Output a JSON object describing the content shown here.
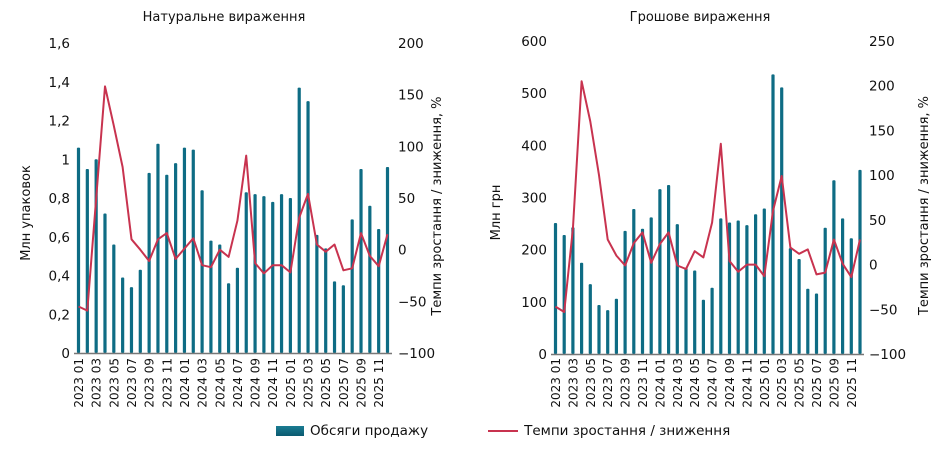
{
  "colors": {
    "bar": "#0e6c84",
    "line": "#c8334f",
    "axis": "#777777"
  },
  "legend": {
    "bars": "Обсяги продажу",
    "line": "Темпи зростання / зниження"
  },
  "chart_data": [
    {
      "type": "bar+line",
      "title": "Натуральне вираження",
      "ylabel": "Млн упаковок",
      "y2label": "Темпи зростання / зниження, %",
      "ylim": [
        0,
        1.6
      ],
      "y2lim": [
        -100,
        200
      ],
      "yticks": [
        "0",
        "0,2",
        "0,4",
        "0,6",
        "0,8",
        "1",
        "1,2",
        "1,4",
        "1,6"
      ],
      "y2ticks": [
        "−100",
        "−50",
        "0",
        "50",
        "100",
        "150",
        "200"
      ],
      "xtick_labels": [
        "2023 01",
        "2023 03",
        "2023 05",
        "2023 07",
        "2023 09",
        "2023 11",
        "2024 01",
        "2024 03",
        "2024 05",
        "2024 07",
        "2024 09",
        "2024 11",
        "2025 01",
        "2025 03",
        "2025 05",
        "2025 07",
        "2025 09",
        "2025 11"
      ],
      "series": [
        {
          "name": "Обсяги продажу",
          "type": "bar",
          "values": [
            1.06,
            0.95,
            1.0,
            0.72,
            0.56,
            0.39,
            0.34,
            0.43,
            0.93,
            1.08,
            0.92,
            0.98,
            1.06,
            1.05,
            0.84,
            0.58,
            0.56,
            0.36,
            0.44,
            0.83,
            0.82,
            0.81,
            0.78,
            0.82,
            0.8,
            1.37,
            1.3,
            0.61,
            0.54,
            0.37,
            0.35,
            0.69,
            0.95,
            0.76,
            0.64,
            0.96
          ]
        },
        {
          "name": "Темпи зростання / зниження",
          "type": "line",
          "values": [
            -55,
            -59,
            50,
            158,
            120,
            80,
            10,
            0,
            -11,
            10,
            16,
            -9,
            1,
            11,
            -15,
            -17,
            0,
            -7,
            28,
            91,
            -13,
            -23,
            -15,
            -15,
            -22,
            31,
            54,
            5,
            -2,
            5,
            -20,
            -18,
            16,
            -6,
            -16,
            15
          ]
        }
      ]
    },
    {
      "type": "bar+line",
      "title": "Грошове вираження",
      "ylabel": "Млн грн",
      "y2label": "Темпи зростання / зниження, %",
      "ylim": [
        0,
        600
      ],
      "y2lim": [
        -100,
        250
      ],
      "yticks": [
        "0",
        "100",
        "200",
        "300",
        "400",
        "500",
        "600"
      ],
      "y2ticks": [
        "−100",
        "−50",
        "0",
        "50",
        "100",
        "150",
        "200",
        "250"
      ],
      "xtick_labels": [
        "2023 01",
        "2023 03",
        "2023 05",
        "2023 07",
        "2023 09",
        "2023 11",
        "2024 01",
        "2024 03",
        "2024 05",
        "2024 07",
        "2024 09",
        "2024 11",
        "2025 01",
        "2025 03",
        "2025 05",
        "2025 07",
        "2025 09",
        "2025 11"
      ],
      "series": [
        {
          "name": "Обсяги продажу",
          "type": "bar",
          "values": [
            251,
            228,
            243,
            175,
            134,
            94,
            84,
            106,
            236,
            278,
            240,
            262,
            316,
            324,
            249,
            165,
            160,
            104,
            127,
            260,
            252,
            256,
            247,
            268,
            279,
            536,
            511,
            203,
            182,
            125,
            116,
            242,
            333,
            260,
            222,
            353
          ]
        },
        {
          "name": "Темпи зростання / зниження",
          "type": "line",
          "values": [
            -47,
            -53,
            40,
            205,
            160,
            100,
            28,
            10,
            -1,
            24,
            36,
            2,
            23,
            36,
            -1,
            -5,
            15,
            8,
            47,
            135,
            4,
            -8,
            0,
            0,
            -13,
            60,
            99,
            19,
            12,
            17,
            -11,
            -9,
            28,
            1,
            -14,
            28
          ]
        }
      ]
    }
  ]
}
